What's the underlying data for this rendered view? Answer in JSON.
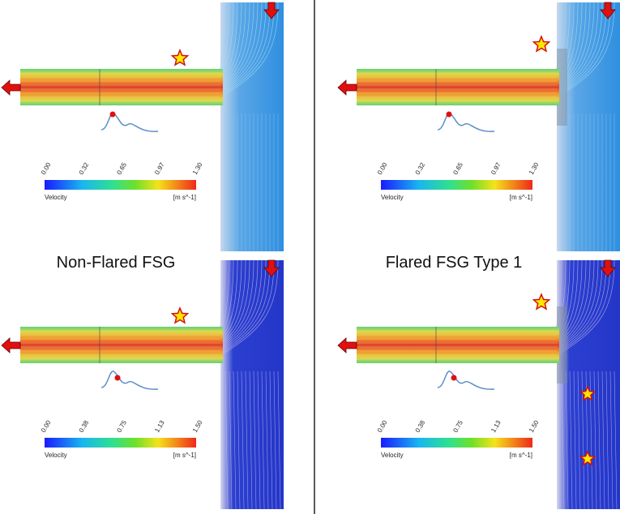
{
  "titles": [
    "Non-Flared FSG",
    "Flared FSG Type 1"
  ],
  "panels": [
    {
      "colorbar": {
        "ticks": [
          "0.00",
          "0.32",
          "0.65",
          "0.97",
          "1.30"
        ],
        "label": "Velocity",
        "unit": "[m s^-1]"
      }
    },
    {
      "colorbar": {
        "ticks": [
          "0.00",
          "0.32",
          "0.65",
          "0.97",
          "1.30"
        ],
        "label": "Velocity",
        "unit": "[m s^-1]"
      }
    },
    {
      "colorbar": {
        "ticks": [
          "0.00",
          "0.38",
          "0.75",
          "1.13",
          "1.50"
        ],
        "label": "Velocity",
        "unit": "[m s^-1]"
      }
    },
    {
      "colorbar": {
        "ticks": [
          "0.00",
          "0.38",
          "0.75",
          "1.13",
          "1.50"
        ],
        "label": "Velocity",
        "unit": "[m s^-1]"
      }
    }
  ]
}
